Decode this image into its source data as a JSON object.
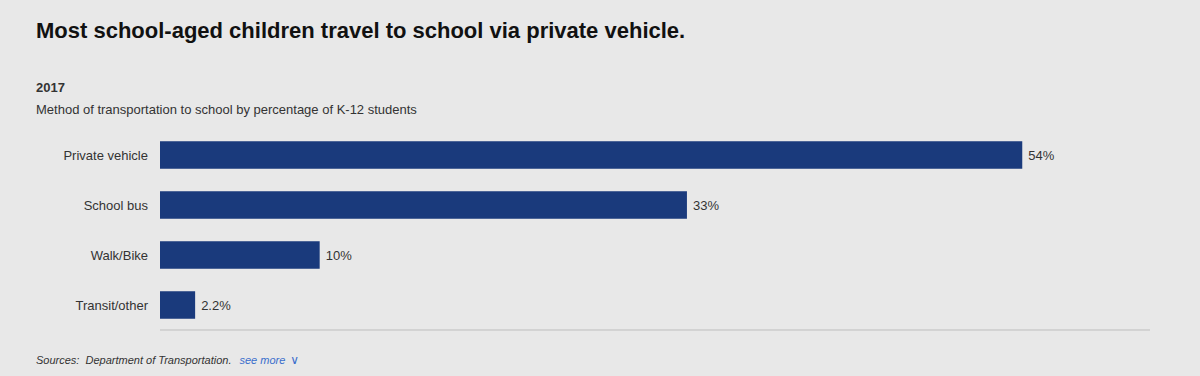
{
  "chart_data": {
    "type": "bar",
    "orientation": "horizontal",
    "title": "Most school-aged children travel to school via private vehicle.",
    "subtitle": "Method of transportation to school by percentage of K-12 students",
    "annotations": [
      "2017",
      "Sources:  Department of Transportation.",
      "see more",
      "∨"
    ],
    "categories": [
      "Private vehicle",
      "School bus",
      "Walk/Bike",
      "Transit/other"
    ],
    "values": [
      54,
      33,
      10,
      2.2
    ],
    "value_labels": [
      "54%",
      "33%",
      "10%",
      "2.2%"
    ],
    "data_labels": true,
    "color": "#1a3a7c",
    "xlim": [
      0,
      62
    ],
    "tick_labels": "y"
  }
}
